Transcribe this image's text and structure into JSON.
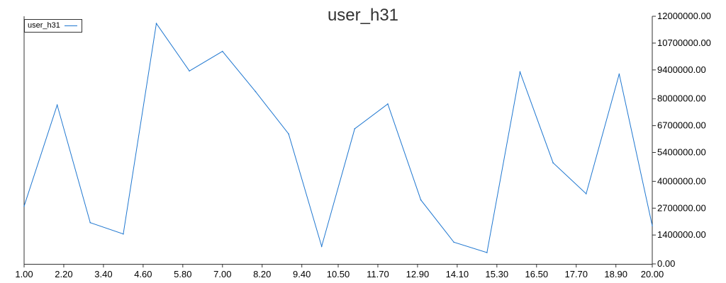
{
  "chart_data": {
    "type": "line",
    "title": "user_h31",
    "x": [
      1,
      2,
      3,
      4,
      5,
      6,
      7,
      8,
      9,
      10,
      11,
      12,
      13,
      14,
      15,
      16,
      17,
      18,
      19,
      20
    ],
    "series": [
      {
        "name": "user_h31",
        "color": "#1f77d0",
        "values": [
          2800000,
          7700000,
          2000000,
          1450000,
          11650000,
          9350000,
          10300000,
          8350000,
          6300000,
          850000,
          6550000,
          7750000,
          3100000,
          1050000,
          550000,
          9300000,
          4900000,
          3400000,
          9200000,
          1850000
        ]
      }
    ],
    "xlim": [
      1,
      20
    ],
    "ylim": [
      0,
      12000000
    ],
    "xticks": [
      "1.00",
      "2.20",
      "3.40",
      "4.60",
      "5.80",
      "7.00",
      "8.20",
      "9.40",
      "10.50",
      "11.70",
      "12.90",
      "14.10",
      "15.30",
      "16.50",
      "17.70",
      "18.90",
      "20.00"
    ],
    "yticks": [
      "0.00",
      "1400000.00",
      "2700000.00",
      "4000000.00",
      "5400000.00",
      "6700000.00",
      "8000000.00",
      "9400000.00",
      "10700000.00",
      "12000000.00"
    ],
    "legend_position": "top-left",
    "grid": false
  }
}
